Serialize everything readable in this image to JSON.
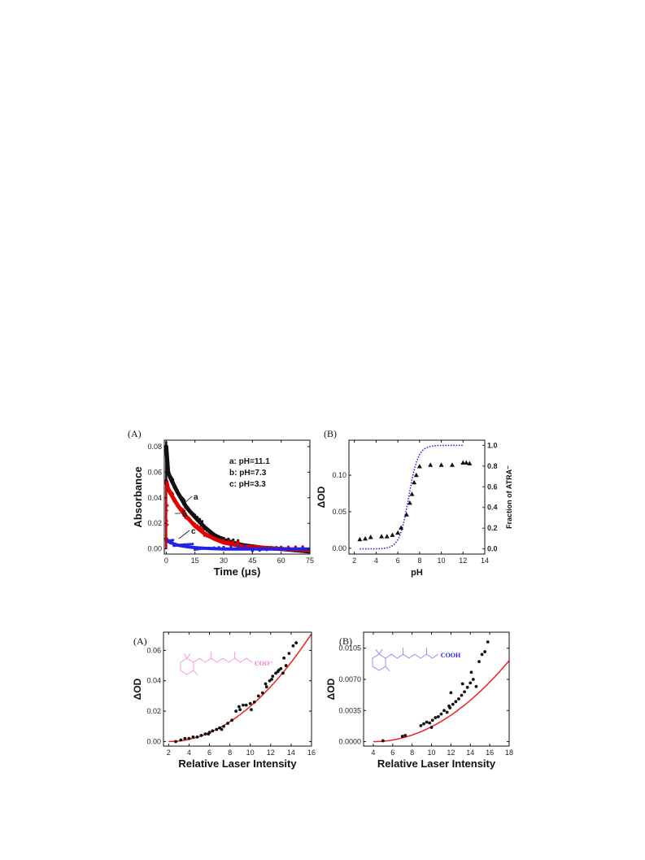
{
  "chart_data": [
    {
      "panel_label": "(A)",
      "type": "line",
      "xlabel": "Time (μs)",
      "ylabel": "Absorbance",
      "xlim": [
        -1,
        75
      ],
      "ylim": [
        -0.004,
        0.085
      ],
      "xticks": [
        0,
        15,
        30,
        45,
        60,
        75
      ],
      "yticks": [
        0.0,
        0.02,
        0.04,
        0.06,
        0.08
      ],
      "ytick_labels": [
        "0.00",
        "0.02",
        "0.04",
        "0.06",
        "0.08"
      ],
      "legend": [
        "a: pH=11.1",
        "b: pH=7.3",
        "c: pH=3.3"
      ],
      "legend_position": "top-right",
      "series": [
        {
          "name": "a",
          "color": "#111111",
          "x": [
            0,
            1,
            2,
            4,
            6,
            8,
            10,
            12,
            15,
            20,
            25,
            30,
            40,
            50,
            60,
            75
          ],
          "values": [
            0.08,
            0.06,
            0.056,
            0.05,
            0.044,
            0.039,
            0.034,
            0.03,
            0.025,
            0.017,
            0.011,
            0.007,
            0.003,
            0.001,
            0.0,
            -0.002
          ]
        },
        {
          "name": "b",
          "color": "#e00000",
          "x": [
            0,
            1,
            2,
            4,
            6,
            8,
            10,
            12,
            15,
            20,
            25,
            30,
            40,
            50,
            60,
            75
          ],
          "values": [
            0.053,
            0.047,
            0.044,
            0.039,
            0.034,
            0.03,
            0.026,
            0.023,
            0.018,
            0.012,
            0.008,
            0.005,
            0.002,
            0.001,
            0.0,
            -0.001
          ]
        },
        {
          "name": "c",
          "color": "#1f24e6",
          "x": [
            0,
            1,
            2,
            4,
            6,
            10,
            15,
            20,
            30,
            45,
            60,
            75
          ],
          "values": [
            0.008,
            0.006,
            0.005,
            0.004,
            0.003,
            0.002,
            0.001,
            0.0005,
            0.0,
            0.0,
            0.0,
            0.0
          ]
        }
      ],
      "curve_labels": [
        "a",
        "b",
        "c"
      ]
    },
    {
      "panel_label": "(B)",
      "type": "scatter",
      "xlabel": "pH",
      "ylabel": "ΔOD",
      "y2label": "Fraction of ATRA⁻",
      "xlim": [
        1.5,
        14
      ],
      "ylim": [
        -0.008,
        0.148
      ],
      "y2lim": [
        -0.05,
        1.05
      ],
      "xticks": [
        2,
        4,
        6,
        8,
        10,
        12,
        14
      ],
      "yticks": [
        0.0,
        0.05,
        0.1
      ],
      "ytick_labels": [
        "0.00",
        "0.05",
        "0.10"
      ],
      "y2ticks": [
        0.0,
        0.2,
        0.4,
        0.6,
        0.8,
        1.0
      ],
      "y2tick_labels": [
        "0.0",
        "0.2",
        "0.4",
        "0.6",
        "0.8",
        "1.0"
      ],
      "points": {
        "x": [
          2.5,
          3.0,
          3.5,
          4.5,
          5.0,
          5.5,
          6.0,
          6.3,
          6.8,
          7.1,
          7.3,
          7.5,
          7.7,
          8.0,
          9.0,
          10.0,
          11.0,
          12.0,
          12.3,
          12.6
        ],
        "values": [
          0.012,
          0.013,
          0.015,
          0.016,
          0.016,
          0.018,
          0.021,
          0.028,
          0.046,
          0.062,
          0.074,
          0.09,
          0.1,
          0.112,
          0.114,
          0.114,
          0.114,
          0.117,
          0.117,
          0.116
        ]
      },
      "fit": {
        "pKa": 7.0,
        "style": "dotted",
        "color": "#1f24e6",
        "x_start": 2.5,
        "x_end": 12.0
      }
    },
    {
      "panel_label": "(A)",
      "type": "scatter",
      "xlabel": "Relative Laser Intensity",
      "ylabel": "ΔOD",
      "xlim": [
        1.5,
        16
      ],
      "ylim": [
        -0.003,
        0.072
      ],
      "xticks": [
        2,
        4,
        6,
        8,
        10,
        12,
        14,
        16
      ],
      "yticks": [
        0.0,
        0.02,
        0.04,
        0.06
      ],
      "ytick_labels": [
        "0.00",
        "0.02",
        "0.04",
        "0.06"
      ],
      "molecule_label": "COO⁻",
      "molecule_color": "#ff66cc",
      "fit": {
        "color": "#ee2222",
        "x0": 2.0,
        "power": 2,
        "coef": 0.000362
      },
      "points": {
        "x": [
          2.7,
          3.2,
          3.6,
          4.0,
          4.4,
          4.8,
          5.2,
          5.6,
          6.0,
          6.3,
          6.7,
          7.0,
          7.4,
          7.8,
          8.2,
          8.6,
          8.9,
          9.3,
          9.6,
          10.0,
          10.4,
          10.8,
          11.2,
          11.6,
          11.9,
          12.2,
          12.5,
          12.8,
          13.0,
          13.2,
          13.5,
          13.8,
          14.2,
          14.5,
          10.1,
          11.5,
          12.1,
          12.7,
          13.3,
          9.0,
          7.2,
          5.9
        ],
        "values": [
          0.0,
          0.001,
          0.002,
          0.002,
          0.003,
          0.003,
          0.004,
          0.005,
          0.006,
          0.007,
          0.008,
          0.009,
          0.01,
          0.012,
          0.014,
          0.02,
          0.023,
          0.024,
          0.024,
          0.025,
          0.026,
          0.03,
          0.032,
          0.036,
          0.04,
          0.043,
          0.045,
          0.047,
          0.048,
          0.045,
          0.05,
          0.058,
          0.063,
          0.065,
          0.021,
          0.038,
          0.041,
          0.046,
          0.055,
          0.021,
          0.008,
          0.005
        ]
      }
    },
    {
      "panel_label": "(B)",
      "type": "scatter",
      "xlabel": "Relative Laser Intensity",
      "ylabel": "ΔOD",
      "xlim": [
        3,
        18
      ],
      "ylim": [
        -0.0005,
        0.0123
      ],
      "xticks": [
        4,
        6,
        8,
        10,
        12,
        14,
        16,
        18
      ],
      "yticks": [
        0.0,
        0.0035,
        0.007,
        0.0105
      ],
      "ytick_labels": [
        "0.0000",
        "0.0035",
        "0.0070",
        "0.0105"
      ],
      "molecule_label": "COOH",
      "molecule_color": "#1f24e6",
      "fit": {
        "color": "#ee2222",
        "x0": 4.0,
        "power": 2,
        "coef": 4.65e-05
      },
      "points": {
        "x": [
          5.0,
          7.0,
          7.3,
          8.9,
          9.2,
          9.5,
          9.8,
          10.1,
          10.4,
          10.7,
          11.0,
          11.3,
          11.6,
          11.9,
          12.2,
          12.5,
          12.8,
          13.1,
          13.4,
          13.7,
          14.0,
          14.3,
          14.6,
          14.9,
          15.2,
          15.5,
          15.8,
          12.0,
          13.2,
          14.1,
          10.0,
          11.8
        ],
        "values": [
          0.0001,
          0.0006,
          0.0007,
          0.0018,
          0.002,
          0.0022,
          0.0021,
          0.0024,
          0.0027,
          0.0028,
          0.0031,
          0.0035,
          0.0033,
          0.0038,
          0.0042,
          0.0045,
          0.0048,
          0.0052,
          0.0056,
          0.0061,
          0.0066,
          0.007,
          0.0062,
          0.009,
          0.0098,
          0.0101,
          0.0112,
          0.0055,
          0.0065,
          0.0078,
          0.0016,
          0.004
        ]
      }
    }
  ]
}
